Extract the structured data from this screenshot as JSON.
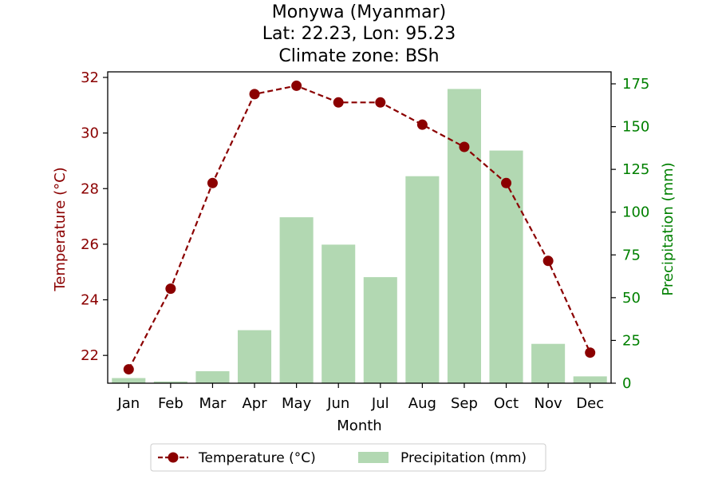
{
  "chart_data": {
    "type": "bar",
    "title": [
      "Monywa (Myanmar)",
      "Lat: 22.23, Lon: 95.23",
      "Climate zone: BSh"
    ],
    "xlabel": "Month",
    "ylabel_left": "Temperature (°C)",
    "ylabel_right": "Precipitation (mm)",
    "categories": [
      "Jan",
      "Feb",
      "Mar",
      "Apr",
      "May",
      "Jun",
      "Jul",
      "Aug",
      "Sep",
      "Oct",
      "Nov",
      "Dec"
    ],
    "series": [
      {
        "name": "Temperature (°C)",
        "type": "line",
        "axis": "left",
        "color": "#8b0000",
        "values": [
          21.5,
          24.4,
          28.2,
          31.4,
          31.7,
          31.1,
          31.1,
          30.3,
          29.5,
          28.2,
          25.4,
          22.1
        ]
      },
      {
        "name": "Precipitation (mm)",
        "type": "bar",
        "axis": "right",
        "color": "#b2d8b2",
        "values": [
          3,
          1,
          7,
          31,
          97,
          81,
          62,
          121,
          172,
          136,
          23,
          4
        ]
      }
    ],
    "ylim_left": [
      21,
      32.2
    ],
    "yticks_left": [
      22,
      24,
      26,
      28,
      30,
      32
    ],
    "ylim_right": [
      0,
      182
    ],
    "yticks_right": [
      0,
      25,
      50,
      75,
      100,
      125,
      150,
      175
    ],
    "left_axis_color": "#8b0000",
    "right_axis_color": "#008000",
    "grid": false,
    "legend_position": "bottom-center"
  }
}
